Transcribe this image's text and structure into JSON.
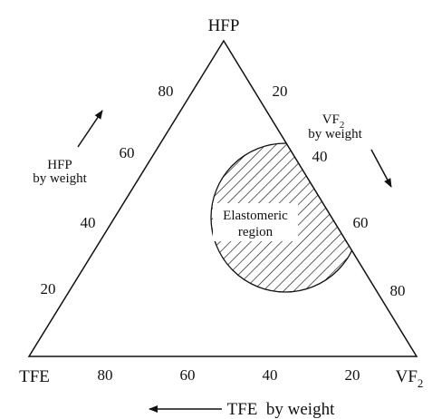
{
  "vertices": {
    "top": "HFP",
    "left": "TFE",
    "right": {
      "text": "VF",
      "sub": "2"
    }
  },
  "axes": {
    "left": {
      "title": [
        "HFP",
        "by weight"
      ],
      "ticks": [
        "80",
        "60",
        "40",
        "20"
      ]
    },
    "right": {
      "title": [
        {
          "text": "VF",
          "sub": "2"
        },
        "by weight"
      ],
      "ticks": [
        "20",
        "40",
        "60",
        "80"
      ]
    },
    "bottom": {
      "title": "TFE  by weight",
      "ticks": [
        "80",
        "60",
        "40",
        "20"
      ]
    }
  },
  "region": [
    "Elastomeric",
    "region"
  ]
}
